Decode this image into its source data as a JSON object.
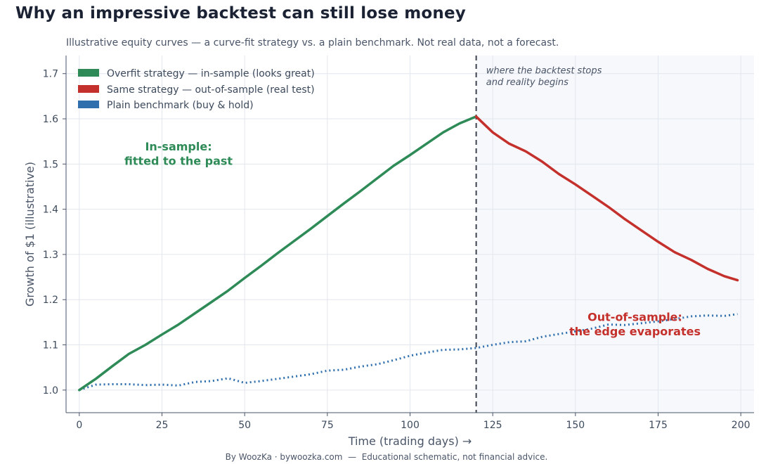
{
  "header": {
    "title": "Why an impressive backtest can still lose money",
    "subtitle": "Illustrative equity curves — a curve-fit strategy vs. a plain benchmark. Not real data, not a forecast."
  },
  "footer": {
    "credit": "By WoozKa · bywoozka.com  —  Educational schematic, not financial advice."
  },
  "colors": {
    "insample": "#2e8b57",
    "outsample": "#c4302b",
    "benchmark": "#2f6fad",
    "shade": "#f7f8fb",
    "grid": "#e2e6ee",
    "axis": "#4a5568"
  },
  "chart_data": {
    "type": "line",
    "xlabel": "Time (trading days) →",
    "ylabel": "Growth of $1 (illustrative)",
    "xlim": [
      -4,
      204
    ],
    "ylim": [
      0.95,
      1.74
    ],
    "xticks": [
      0,
      25,
      50,
      75,
      100,
      125,
      150,
      175,
      200
    ],
    "yticks": [
      1.0,
      1.1,
      1.2,
      1.3,
      1.4,
      1.5,
      1.6,
      1.7
    ],
    "ytick_labels": [
      "1.0",
      "1.1",
      "1.2",
      "1.3",
      "1.4",
      "1.5",
      "1.6",
      "1.7"
    ],
    "grid": true,
    "legend_position": "top-left",
    "split_x": 120,
    "shaded_region": [
      120,
      204
    ],
    "series": [
      {
        "name": "Overfit strategy — in-sample (looks great)",
        "style": "solid",
        "x": [
          0,
          5,
          10,
          15,
          20,
          25,
          30,
          35,
          40,
          45,
          50,
          55,
          60,
          65,
          70,
          75,
          80,
          85,
          90,
          95,
          100,
          105,
          110,
          115,
          120
        ],
        "y": [
          1.0,
          1.025,
          1.053,
          1.08,
          1.1,
          1.123,
          1.145,
          1.17,
          1.195,
          1.22,
          1.248,
          1.275,
          1.303,
          1.33,
          1.357,
          1.385,
          1.413,
          1.44,
          1.468,
          1.496,
          1.52,
          1.545,
          1.57,
          1.59,
          1.605
        ]
      },
      {
        "name": "Same strategy — out-of-sample (real test)",
        "style": "solid",
        "x": [
          120,
          125,
          130,
          135,
          140,
          145,
          150,
          155,
          160,
          165,
          170,
          175,
          180,
          185,
          190,
          195,
          199
        ],
        "y": [
          1.605,
          1.57,
          1.545,
          1.528,
          1.505,
          1.478,
          1.455,
          1.43,
          1.405,
          1.378,
          1.353,
          1.328,
          1.305,
          1.288,
          1.268,
          1.252,
          1.243
        ]
      },
      {
        "name": "Plain benchmark (buy & hold)",
        "style": "dotted",
        "x": [
          0,
          5,
          10,
          15,
          20,
          25,
          30,
          35,
          40,
          45,
          50,
          55,
          60,
          65,
          70,
          75,
          80,
          85,
          90,
          95,
          100,
          105,
          110,
          115,
          120,
          125,
          130,
          135,
          140,
          145,
          150,
          155,
          160,
          165,
          170,
          175,
          180,
          185,
          190,
          195,
          199
        ],
        "y": [
          1.0,
          1.012,
          1.013,
          1.013,
          1.011,
          1.012,
          1.01,
          1.018,
          1.02,
          1.026,
          1.016,
          1.02,
          1.025,
          1.03,
          1.035,
          1.043,
          1.045,
          1.052,
          1.057,
          1.066,
          1.076,
          1.083,
          1.089,
          1.09,
          1.093,
          1.1,
          1.106,
          1.108,
          1.118,
          1.124,
          1.13,
          1.136,
          1.145,
          1.144,
          1.148,
          1.152,
          1.157,
          1.163,
          1.165,
          1.164,
          1.168
        ]
      }
    ],
    "annotations": [
      {
        "text": "where the backtest stops",
        "x": 123,
        "y": 1.7
      },
      {
        "text": "and reality begins",
        "x": 123,
        "y": 1.675
      },
      {
        "text": "In-sample:",
        "x": 30,
        "y": 1.53
      },
      {
        "text": "fitted to the past",
        "x": 30,
        "y": 1.498
      },
      {
        "text": "Out-of-sample:",
        "x": 168,
        "y": 1.153
      },
      {
        "text": "the edge evaporates",
        "x": 168,
        "y": 1.121
      }
    ]
  }
}
